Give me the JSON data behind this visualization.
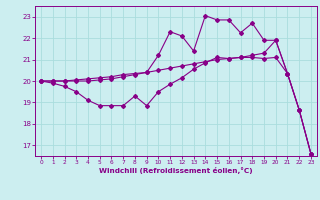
{
  "x_ticks": [
    0,
    1,
    2,
    3,
    4,
    5,
    6,
    7,
    8,
    9,
    10,
    11,
    12,
    13,
    14,
    15,
    16,
    17,
    18,
    19,
    20,
    21,
    22,
    23
  ],
  "line1_x": [
    0,
    1,
    2,
    3,
    4,
    5,
    6,
    7,
    8,
    9,
    10,
    11,
    12,
    13,
    14,
    15,
    16,
    17,
    18,
    19,
    20,
    21,
    22,
    23
  ],
  "line1_y": [
    20.0,
    19.9,
    19.75,
    19.5,
    19.1,
    18.85,
    18.85,
    18.85,
    19.3,
    18.85,
    19.5,
    19.85,
    20.15,
    20.55,
    20.85,
    21.1,
    21.05,
    21.1,
    21.1,
    21.05,
    21.1,
    20.35,
    18.65,
    16.6
  ],
  "line2_x": [
    0,
    1,
    2,
    3,
    4,
    5,
    6,
    7,
    8,
    9,
    10,
    11,
    12,
    13,
    14,
    15,
    16,
    17,
    18,
    19,
    20,
    21,
    22,
    23
  ],
  "line2_y": [
    20.0,
    20.0,
    20.0,
    20.05,
    20.1,
    20.15,
    20.2,
    20.3,
    20.35,
    20.4,
    20.5,
    20.6,
    20.7,
    20.8,
    20.9,
    21.0,
    21.05,
    21.1,
    21.2,
    21.3,
    21.9,
    20.35,
    18.65,
    16.6
  ],
  "line3_x": [
    0,
    1,
    2,
    3,
    4,
    5,
    6,
    7,
    8,
    9,
    10,
    11,
    12,
    13,
    14,
    15,
    16,
    17,
    18,
    19,
    20,
    21,
    22,
    23
  ],
  "line3_y": [
    20.0,
    20.0,
    20.0,
    20.0,
    20.0,
    20.05,
    20.1,
    20.2,
    20.3,
    20.4,
    21.2,
    22.3,
    22.1,
    21.4,
    23.05,
    22.85,
    22.85,
    22.25,
    22.7,
    21.9,
    21.9,
    20.35,
    18.65,
    16.6
  ],
  "color": "#880088",
  "bg_color": "#cceef0",
  "grid_color": "#aadddd",
  "ylim": [
    16.5,
    23.5
  ],
  "yticks": [
    17,
    18,
    19,
    20,
    21,
    22,
    23
  ],
  "xlim": [
    -0.5,
    23.5
  ],
  "xlabel": "Windchill (Refroidissement éolien,°C)",
  "marker": "D",
  "markersize": 2.0,
  "linewidth": 0.8
}
